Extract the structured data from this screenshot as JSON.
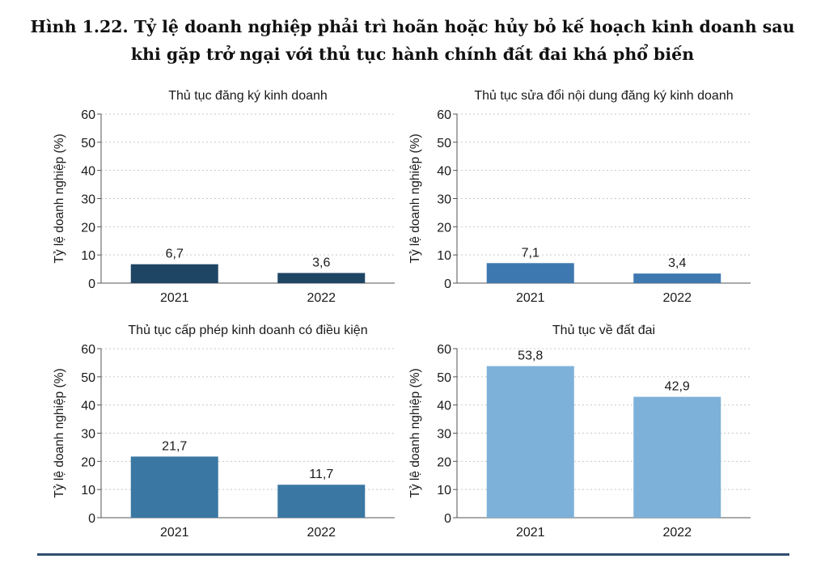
{
  "figure": {
    "title_line1": "Hình 1.22. Tỷ lệ doanh nghiệp phải trì hoãn hoặc hủy bỏ kế hoạch kinh doanh sau",
    "title_line2": "khi gặp trở ngại với thủ tục hành chính đất đai khá phổ biến"
  },
  "colors": {
    "panel_1": "#1f4565",
    "panel_2": "#3e78b0",
    "panel_3": "#3a78a3",
    "panel_4": "#7eb1d9",
    "axis": "#555555",
    "grid": "#c8c8c8",
    "bottom_rule": "#2f4d6e"
  },
  "chart_data": [
    {
      "type": "bar",
      "title": "Thủ tục đăng ký kinh doanh",
      "ylabel": "Tỷ lệ doanh nghiệp (%)",
      "categories": [
        "2021",
        "2022"
      ],
      "values": [
        6.7,
        3.6
      ],
      "value_labels": [
        "6,7",
        "3,6"
      ],
      "ylim": [
        0,
        60
      ],
      "yticks": [
        0,
        10,
        20,
        30,
        40,
        50,
        60
      ],
      "grid": true,
      "color": "#1f4565"
    },
    {
      "type": "bar",
      "title": "Thủ tục sửa đổi nội dung đăng ký kinh doanh",
      "ylabel": "Tỷ lệ doanh nghiệp (%)",
      "categories": [
        "2021",
        "2022"
      ],
      "values": [
        7.1,
        3.4
      ],
      "value_labels": [
        "7,1",
        "3,4"
      ],
      "ylim": [
        0,
        60
      ],
      "yticks": [
        0,
        10,
        20,
        30,
        40,
        50,
        60
      ],
      "grid": true,
      "color": "#3e78b0"
    },
    {
      "type": "bar",
      "title": "Thủ tục cấp phép kinh doanh có điều kiện",
      "ylabel": "Tỷ lệ doanh nghiệp (%)",
      "categories": [
        "2021",
        "2022"
      ],
      "values": [
        21.7,
        11.7
      ],
      "value_labels": [
        "21,7",
        "11,7"
      ],
      "ylim": [
        0,
        60
      ],
      "yticks": [
        0,
        10,
        20,
        30,
        40,
        50,
        60
      ],
      "grid": true,
      "color": "#3a78a3"
    },
    {
      "type": "bar",
      "title": "Thủ tục về đất đai",
      "ylabel": "Tỷ lệ doanh nghiệp (%)",
      "categories": [
        "2021",
        "2022"
      ],
      "values": [
        53.8,
        42.9
      ],
      "value_labels": [
        "53,8",
        "42,9"
      ],
      "ylim": [
        0,
        60
      ],
      "yticks": [
        0,
        10,
        20,
        30,
        40,
        50,
        60
      ],
      "grid": true,
      "color": "#7eb1d9"
    }
  ]
}
